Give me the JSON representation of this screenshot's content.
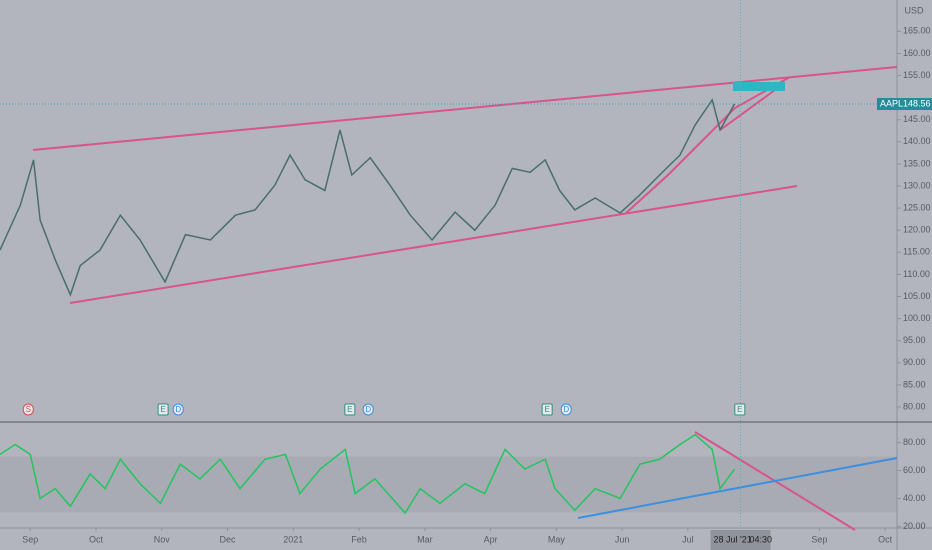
{
  "currency": "USD",
  "last_price": {
    "symbol": "AAPL",
    "value": 148.56,
    "label": "148.56"
  },
  "crosshair": {
    "x": 10.8,
    "label": "28 Jul '21",
    "time": "04:30"
  },
  "xlim": [
    -0.46,
    13.18
  ],
  "xticks": [
    {
      "value": 0,
      "label": "Sep"
    },
    {
      "value": 1,
      "label": "Oct"
    },
    {
      "value": 2,
      "label": "Nov"
    },
    {
      "value": 3,
      "label": "Dec"
    },
    {
      "value": 4,
      "label": "2021"
    },
    {
      "value": 5,
      "label": "Feb"
    },
    {
      "value": 6,
      "label": "Mar"
    },
    {
      "value": 7,
      "label": "Apr"
    },
    {
      "value": 8,
      "label": "May"
    },
    {
      "value": 9,
      "label": "Jun"
    },
    {
      "value": 10,
      "label": "Jul"
    },
    {
      "value": 12,
      "label": "Sep"
    },
    {
      "value": 13,
      "label": "Oct"
    }
  ],
  "events": [
    {
      "x": -0.03,
      "label": "S"
    },
    {
      "x": 2.02,
      "label": "E"
    },
    {
      "x": 2.25,
      "label": "D"
    },
    {
      "x": 4.86,
      "label": "E"
    },
    {
      "x": 5.14,
      "label": "D"
    },
    {
      "x": 7.86,
      "label": "E"
    },
    {
      "x": 8.15,
      "label": "D"
    },
    {
      "x": 10.79,
      "label": "E"
    }
  ],
  "chart_data": [
    {
      "type": "line",
      "color": "#4a6e6a",
      "x": [
        -0.46,
        -0.15,
        0.05,
        0.15,
        0.38,
        0.61,
        0.76,
        1.06,
        1.37,
        1.67,
        2.05,
        2.36,
        2.74,
        3.12,
        3.42,
        3.72,
        3.95,
        4.18,
        4.48,
        4.71,
        4.89,
        5.17,
        5.47,
        5.78,
        6.11,
        6.46,
        6.76,
        7.07,
        7.33,
        7.6,
        7.83,
        8.05,
        8.28,
        8.59,
        8.97,
        9.27,
        9.57,
        9.88,
        10.11,
        10.37,
        10.49,
        10.71
      ],
      "values": [
        115.5,
        125.7,
        135.9,
        122.3,
        113.3,
        105.4,
        112,
        115.5,
        123.4,
        117.8,
        108.3,
        119,
        117.8,
        123.4,
        124.6,
        130.2,
        137,
        131.4,
        129,
        142.7,
        132.5,
        136.4,
        130.2,
        123.4,
        117.8,
        124.1,
        120,
        125.7,
        134,
        133.1,
        135.9,
        129,
        124.6,
        127.3,
        123.9,
        128,
        132.5,
        137,
        143.8,
        149.5,
        142.7,
        148.6
      ],
      "ylim": [
        76.6,
        172.1
      ],
      "yticks": [
        {
          "value": 80,
          "label": "80.00"
        },
        {
          "value": 85,
          "label": "85.00"
        },
        {
          "value": 90,
          "label": "90.00"
        },
        {
          "value": 95,
          "label": "95.00"
        },
        {
          "value": 100,
          "label": "100.00"
        },
        {
          "value": 105,
          "label": "105.00"
        },
        {
          "value": 110,
          "label": "110.00"
        },
        {
          "value": 115,
          "label": "115.00"
        },
        {
          "value": 120,
          "label": "120.00"
        },
        {
          "value": 125,
          "label": "125.00"
        },
        {
          "value": 130,
          "label": "130.00"
        },
        {
          "value": 135,
          "label": "135.00"
        },
        {
          "value": 140,
          "label": "140.00"
        },
        {
          "value": 145,
          "label": "145.00"
        },
        {
          "value": 155,
          "label": "155.00"
        },
        {
          "value": 160,
          "label": "160.00"
        },
        {
          "value": 165,
          "label": "165.00"
        }
      ]
    },
    {
      "type": "line",
      "color": "#22c55e",
      "band": [
        30,
        70
      ],
      "x": [
        -0.46,
        -0.23,
        0,
        0.15,
        0.38,
        0.61,
        0.91,
        1.14,
        1.37,
        1.67,
        1.98,
        2.28,
        2.58,
        2.89,
        3.19,
        3.57,
        3.88,
        4.1,
        4.41,
        4.79,
        4.94,
        5.24,
        5.7,
        5.93,
        6.23,
        6.61,
        6.91,
        7.22,
        7.52,
        7.83,
        7.98,
        8.28,
        8.59,
        8.97,
        9.27,
        9.57,
        9.88,
        10.11,
        10.37,
        10.49,
        10.71
      ],
      "values": [
        71.6,
        78.6,
        71.6,
        40.1,
        47.1,
        34.5,
        57.6,
        47.1,
        68.1,
        50.6,
        36.6,
        64.6,
        54.1,
        68.1,
        47.1,
        68.1,
        71.6,
        43.6,
        61.1,
        75.1,
        43.6,
        54.1,
        29.7,
        47.1,
        36.6,
        50.6,
        43.6,
        75.1,
        61.1,
        68.1,
        47.1,
        31.7,
        47.1,
        40.1,
        64.6,
        68.1,
        78.6,
        85.6,
        75.1,
        47.1,
        61.1
      ],
      "ylim": [
        19,
        94.7
      ],
      "yticks": [
        {
          "value": 20,
          "label": "20.00"
        },
        {
          "value": 40,
          "label": "40.00"
        },
        {
          "value": 60,
          "label": "60.00"
        },
        {
          "value": 80,
          "label": "80.00"
        }
      ]
    }
  ]
}
